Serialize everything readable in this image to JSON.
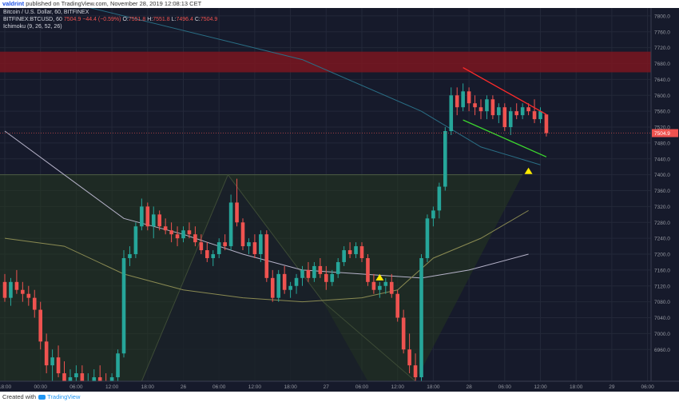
{
  "header": {
    "user": "valdrint",
    "published": "published on TradingView.com, November 28, 2019 12:08:13 CET"
  },
  "legend": {
    "title": "Bitcoin / U.S. Dollar, 60, BITFINEX",
    "symbol": "BITFINEX:BTCUSD, 60",
    "last": "7504.9",
    "change": "−44.4 (−0.59%)",
    "ohlc": {
      "o_label": "O:",
      "o": "7551.8",
      "h_label": "H:",
      "h": "7551.8",
      "l_label": "L:",
      "l": "7496.4",
      "c_label": "C:",
      "c": "7504.9"
    },
    "indicator": "Ichimoku (9, 26, 52, 26)"
  },
  "footer": {
    "created_with": "Created with",
    "brand": "TradingView"
  },
  "colors": {
    "background": "#161a2b",
    "up": "#26a69a",
    "down": "#ef5350",
    "resistance_zone": "#7a1620",
    "wedge_upper": "#ff2b2b",
    "wedge_lower": "#3cd62e",
    "pattern_fill": "#26391f",
    "triangle_marker": "#ffea00",
    "price_label_bg": "#ef5350"
  },
  "chart_data": {
    "type": "candlestick",
    "ylim": [
      6880,
      7820
    ],
    "y_ticks": [
      6960,
      7000,
      7040,
      7080,
      7120,
      7160,
      7200,
      7240,
      7280,
      7320,
      7360,
      7400,
      7440,
      7480,
      7520,
      7560,
      7600,
      7640,
      7680,
      7720,
      7760,
      7800
    ],
    "y_tick_labels": [
      "6960.0",
      "7000.0",
      "7040.0",
      "7080.0",
      "7120.0",
      "7160.0",
      "7200.0",
      "7240.0",
      "7280.0",
      "7320.0",
      "7360.0",
      "7400.0",
      "7440.0",
      "7480.0",
      "7520.0",
      "7560.0",
      "7600.0",
      "7640.0",
      "7680.0",
      "7720.0",
      "7760.0",
      "7800.0"
    ],
    "x_ticks": [
      {
        "label": "18:00",
        "bar": 0
      },
      {
        "label": "00:00",
        "bar": 6
      },
      {
        "label": "06:00",
        "bar": 12
      },
      {
        "label": "12:00",
        "bar": 18
      },
      {
        "label": "18:00",
        "bar": 24
      },
      {
        "label": "26",
        "bar": 30
      },
      {
        "label": "06:00",
        "bar": 36
      },
      {
        "label": "12:00",
        "bar": 42
      },
      {
        "label": "18:00",
        "bar": 48
      },
      {
        "label": "27",
        "bar": 54
      },
      {
        "label": "06:00",
        "bar": 60
      },
      {
        "label": "12:00",
        "bar": 66
      },
      {
        "label": "18:00",
        "bar": 72
      },
      {
        "label": "28",
        "bar": 78
      },
      {
        "label": "06:00",
        "bar": 84
      },
      {
        "label": "12:00",
        "bar": 90
      },
      {
        "label": "18:00",
        "bar": 96
      },
      {
        "label": "29",
        "bar": 102
      },
      {
        "label": "06:00",
        "bar": 108
      }
    ],
    "last_price": 7504.9,
    "last_price_label": "7504.9",
    "candles": [
      [
        7130,
        7150,
        7080,
        7090
      ],
      [
        7090,
        7140,
        7070,
        7130
      ],
      [
        7130,
        7160,
        7100,
        7110
      ],
      [
        7110,
        7130,
        7080,
        7100
      ],
      [
        7100,
        7120,
        7070,
        7090
      ],
      [
        7090,
        7110,
        7040,
        7060
      ],
      [
        7060,
        7080,
        6960,
        6980
      ],
      [
        6980,
        7000,
        6900,
        6920
      ],
      [
        6920,
        6960,
        6880,
        6940
      ],
      [
        6940,
        6970,
        6890,
        6900
      ],
      [
        6900,
        6930,
        6870,
        6880
      ],
      [
        6880,
        6910,
        6860,
        6890
      ],
      [
        6890,
        6920,
        6870,
        6900
      ],
      [
        6900,
        6920,
        6860,
        6870
      ],
      [
        6870,
        6900,
        6850,
        6880
      ],
      [
        6880,
        6910,
        6860,
        6890
      ],
      [
        6890,
        6920,
        6870,
        6880
      ],
      [
        6880,
        6900,
        6860,
        6870
      ],
      [
        6870,
        6900,
        6860,
        6890
      ],
      [
        6890,
        6960,
        6880,
        6950
      ],
      [
        6950,
        7210,
        6940,
        7190
      ],
      [
        7190,
        7220,
        7170,
        7200
      ],
      [
        7200,
        7280,
        7190,
        7270
      ],
      [
        7270,
        7340,
        7260,
        7320
      ],
      [
        7320,
        7330,
        7260,
        7270
      ],
      [
        7270,
        7320,
        7240,
        7300
      ],
      [
        7300,
        7310,
        7260,
        7270
      ],
      [
        7270,
        7290,
        7250,
        7260
      ],
      [
        7260,
        7280,
        7230,
        7250
      ],
      [
        7250,
        7270,
        7220,
        7240
      ],
      [
        7240,
        7270,
        7230,
        7260
      ],
      [
        7260,
        7280,
        7240,
        7250
      ],
      [
        7250,
        7270,
        7220,
        7230
      ],
      [
        7230,
        7250,
        7200,
        7210
      ],
      [
        7210,
        7230,
        7180,
        7190
      ],
      [
        7190,
        7210,
        7170,
        7200
      ],
      [
        7200,
        7240,
        7190,
        7230
      ],
      [
        7230,
        7250,
        7210,
        7220
      ],
      [
        7220,
        7350,
        7210,
        7330
      ],
      [
        7330,
        7390,
        7270,
        7280
      ],
      [
        7280,
        7290,
        7210,
        7220
      ],
      [
        7220,
        7240,
        7200,
        7230
      ],
      [
        7230,
        7250,
        7190,
        7200
      ],
      [
        7200,
        7260,
        7180,
        7250
      ],
      [
        7250,
        7260,
        7130,
        7140
      ],
      [
        7140,
        7160,
        7080,
        7090
      ],
      [
        7090,
        7160,
        7080,
        7150
      ],
      [
        7150,
        7170,
        7100,
        7110
      ],
      [
        7110,
        7130,
        7090,
        7120
      ],
      [
        7120,
        7150,
        7100,
        7140
      ],
      [
        7140,
        7170,
        7120,
        7160
      ],
      [
        7160,
        7180,
        7130,
        7140
      ],
      [
        7140,
        7180,
        7130,
        7170
      ],
      [
        7170,
        7190,
        7140,
        7150
      ],
      [
        7150,
        7170,
        7110,
        7130
      ],
      [
        7130,
        7160,
        7120,
        7150
      ],
      [
        7150,
        7190,
        7140,
        7180
      ],
      [
        7180,
        7220,
        7170,
        7210
      ],
      [
        7210,
        7230,
        7190,
        7200
      ],
      [
        7200,
        7230,
        7190,
        7220
      ],
      [
        7220,
        7230,
        7180,
        7190
      ],
      [
        7190,
        7200,
        7120,
        7130
      ],
      [
        7130,
        7150,
        7100,
        7110
      ],
      [
        7110,
        7130,
        7090,
        7120
      ],
      [
        7120,
        7140,
        7100,
        7130
      ],
      [
        7130,
        7150,
        7090,
        7100
      ],
      [
        7100,
        7110,
        7030,
        7040
      ],
      [
        7040,
        7060,
        6950,
        6960
      ],
      [
        6960,
        7000,
        6900,
        6920
      ],
      [
        6920,
        6950,
        6880,
        6890
      ],
      [
        6890,
        7200,
        6880,
        7190
      ],
      [
        7190,
        7300,
        7180,
        7290
      ],
      [
        7290,
        7320,
        7270,
        7310
      ],
      [
        7310,
        7380,
        7290,
        7370
      ],
      [
        7370,
        7520,
        7360,
        7510
      ],
      [
        7510,
        7620,
        7500,
        7600
      ],
      [
        7600,
        7620,
        7550,
        7570
      ],
      [
        7570,
        7630,
        7560,
        7610
      ],
      [
        7610,
        7620,
        7560,
        7580
      ],
      [
        7580,
        7600,
        7550,
        7570
      ],
      [
        7570,
        7590,
        7540,
        7560
      ],
      [
        7560,
        7600,
        7540,
        7590
      ],
      [
        7590,
        7600,
        7540,
        7550
      ],
      [
        7550,
        7580,
        7530,
        7570
      ],
      [
        7570,
        7580,
        7510,
        7520
      ],
      [
        7520,
        7570,
        7500,
        7560
      ],
      [
        7560,
        7580,
        7540,
        7550
      ],
      [
        7550,
        7580,
        7540,
        7570
      ],
      [
        7570,
        7580,
        7550,
        7560
      ],
      [
        7560,
        7590,
        7530,
        7540
      ],
      [
        7540,
        7570,
        7530,
        7560
      ],
      [
        7551.8,
        7551.8,
        7496.4,
        7504.9
      ]
    ]
  }
}
